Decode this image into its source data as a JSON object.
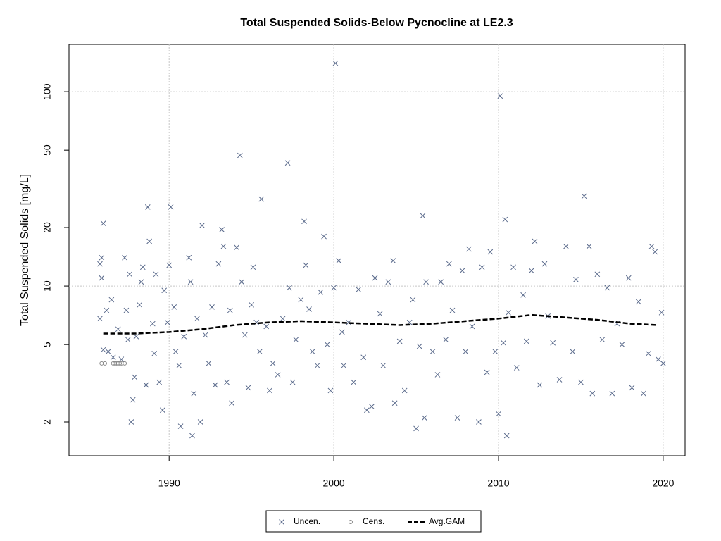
{
  "chart_data": {
    "type": "scatter",
    "title": "Total Suspended Solids-Below Pycnocline at LE2.3",
    "y_label": "Total Suspended Solids [mg/L]",
    "log_y": true,
    "grid": true,
    "legend": "bottom",
    "xlim": [
      1983.92,
      2021.33
    ],
    "xticks": [
      1990,
      2000,
      2010,
      2020
    ],
    "ylim": [
      1.34,
      175
    ],
    "yticks": [
      2,
      5,
      10,
      20,
      50,
      100
    ],
    "series": [
      {
        "name": "Uncen.",
        "marker": "x",
        "color": "#5b6b8c",
        "x": [
          1985.8,
          1985.8,
          1985.9,
          1985.9,
          1986.0,
          1986.0,
          1986.2,
          1986.3,
          1986.5,
          1986.6,
          1986.9,
          1987.1,
          1987.3,
          1987.4,
          1987.5,
          1987.6,
          1987.7,
          1987.8,
          1987.9,
          1988.0,
          1988.2,
          1988.3,
          1988.4,
          1988.6,
          1988.7,
          1988.8,
          1989.0,
          1989.1,
          1989.2,
          1989.4,
          1989.6,
          1989.7,
          1989.9,
          1990.0,
          1990.1,
          1990.3,
          1990.4,
          1990.6,
          1990.7,
          1990.9,
          1991.2,
          1991.3,
          1991.4,
          1991.5,
          1991.7,
          1991.9,
          1992.0,
          1992.2,
          1992.4,
          1992.6,
          1992.8,
          1993.0,
          1993.2,
          1993.3,
          1993.5,
          1993.7,
          1993.8,
          1994.1,
          1994.3,
          1994.4,
          1994.6,
          1994.8,
          1995.0,
          1995.1,
          1995.3,
          1995.5,
          1995.6,
          1995.9,
          1996.1,
          1996.3,
          1996.6,
          1996.9,
          1997.2,
          1997.3,
          1997.5,
          1997.7,
          1998.0,
          1998.2,
          1998.3,
          1998.5,
          1998.7,
          1999.0,
          1999.2,
          1999.4,
          1999.6,
          1999.8,
          2000.0,
          2000.1,
          2000.3,
          2000.5,
          2000.6,
          2000.9,
          2001.2,
          2001.5,
          2001.8,
          2002.0,
          2002.3,
          2002.5,
          2002.8,
          2003.0,
          2003.3,
          2003.6,
          2003.7,
          2004.0,
          2004.3,
          2004.6,
          2004.8,
          2005.0,
          2005.2,
          2005.4,
          2005.5,
          2005.6,
          2006.0,
          2006.3,
          2006.5,
          2006.8,
          2007.0,
          2007.2,
          2007.5,
          2007.8,
          2008.0,
          2008.2,
          2008.4,
          2008.8,
          2009.0,
          2009.3,
          2009.5,
          2009.8,
          2010.0,
          2010.1,
          2010.3,
          2010.4,
          2010.5,
          2010.6,
          2010.9,
          2011.1,
          2011.5,
          2011.7,
          2012.0,
          2012.2,
          2012.5,
          2012.8,
          2013.0,
          2013.3,
          2013.7,
          2014.1,
          2014.5,
          2014.7,
          2015.0,
          2015.2,
          2015.5,
          2015.7,
          2016.0,
          2016.3,
          2016.6,
          2016.9,
          2017.2,
          2017.5,
          2017.9,
          2018.1,
          2018.5,
          2018.8,
          2019.1,
          2019.3,
          2019.5,
          2019.7,
          2019.9,
          2020.0
        ],
        "values": [
          6.8,
          13,
          14,
          11,
          4.7,
          21,
          7.5,
          4.6,
          8.5,
          4.3,
          6,
          4.2,
          14,
          7.5,
          5.3,
          11.5,
          2.0,
          2.6,
          3.4,
          5.5,
          8,
          10.5,
          12.5,
          3.1,
          25.5,
          17,
          6.4,
          4.5,
          11.5,
          3.2,
          2.3,
          9.5,
          6.5,
          12.8,
          25.5,
          7.8,
          4.6,
          3.9,
          1.9,
          5.5,
          14,
          10.5,
          1.7,
          2.8,
          6.8,
          2.0,
          20.5,
          5.6,
          4.0,
          7.8,
          3.1,
          13,
          19.5,
          16,
          3.2,
          7.5,
          2.5,
          15.8,
          47,
          10.5,
          5.6,
          3.0,
          8,
          12.5,
          6.5,
          4.6,
          28,
          6.2,
          2.9,
          4.0,
          3.5,
          6.8,
          43,
          9.8,
          3.2,
          5.3,
          8.5,
          21.5,
          12.8,
          7.6,
          4.6,
          3.9,
          9.3,
          18,
          5.0,
          2.9,
          9.8,
          140,
          13.5,
          5.8,
          3.9,
          6.5,
          3.2,
          9.6,
          4.3,
          2.3,
          2.4,
          11,
          7.2,
          3.9,
          10.5,
          13.5,
          2.5,
          5.2,
          2.9,
          6.5,
          8.5,
          1.85,
          4.9,
          23,
          2.1,
          10.5,
          4.6,
          3.5,
          10.5,
          5.3,
          13,
          7.5,
          2.1,
          12,
          4.6,
          15.5,
          6.2,
          2.0,
          12.5,
          3.6,
          15,
          4.6,
          2.2,
          95,
          5.1,
          22,
          1.7,
          7.3,
          12.5,
          3.8,
          9,
          5.2,
          12,
          17,
          3.1,
          13,
          7.0,
          5.1,
          3.3,
          16,
          4.6,
          10.8,
          3.2,
          29,
          16,
          2.8,
          11.5,
          5.3,
          9.8,
          2.8,
          6.4,
          5.0,
          11,
          3.0,
          8.3,
          2.8,
          4.5,
          16,
          15,
          4.2,
          7.3,
          4.0
        ]
      },
      {
        "name": "Cens.",
        "marker": "o",
        "color": "#888888",
        "x": [
          1985.9,
          1986.1,
          1986.6,
          1986.7,
          1986.8,
          1986.9,
          1987.0,
          1987.1,
          1987.3
        ],
        "values": [
          4,
          4,
          4,
          4,
          4,
          4,
          4,
          4,
          4
        ]
      },
      {
        "name": "Avg.GAM",
        "marker": "dashed-line",
        "color": "#000000",
        "x": [
          1986,
          1988,
          1990,
          1992,
          1994,
          1996,
          1998,
          2000,
          2002,
          2004,
          2006,
          2008,
          2010,
          2012,
          2014,
          2016,
          2018,
          2019.6
        ],
        "values": [
          5.7,
          5.7,
          5.8,
          6.0,
          6.3,
          6.5,
          6.6,
          6.5,
          6.4,
          6.3,
          6.4,
          6.6,
          6.8,
          7.1,
          6.9,
          6.7,
          6.4,
          6.3
        ]
      }
    ]
  }
}
